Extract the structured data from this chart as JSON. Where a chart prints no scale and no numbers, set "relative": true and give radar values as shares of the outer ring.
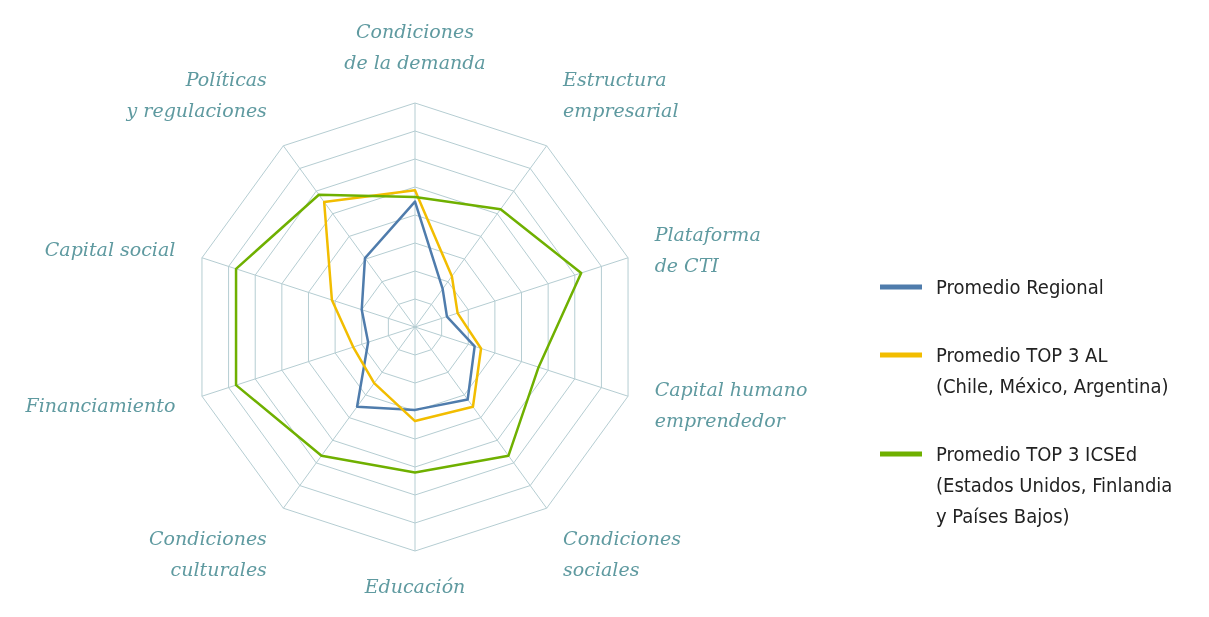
{
  "chart_data": {
    "type": "radar",
    "relative": true,
    "legend": "right",
    "categories": [
      "Condiciones\nde la demanda",
      "Estructura\nempresarial",
      "Plataforma\nde CTI",
      "Capital humano\nemprendedor",
      "Condiciones\nsociales",
      "Educación",
      "Condiciones\nculturales",
      "Financiamiento",
      "Capital social",
      "Políticas\ny regulaciones"
    ],
    "series": [
      {
        "name": "Promedio Regional",
        "color": "#4f7cac",
        "values": [
          0.56,
          0.21,
          0.15,
          0.28,
          0.4,
          0.37,
          0.44,
          0.22,
          0.25,
          0.38
        ]
      },
      {
        "name": "Promedio TOP 3 AL\n(Chile, México, Argentina)",
        "color": "#f2bd00",
        "values": [
          0.61,
          0.28,
          0.2,
          0.31,
          0.44,
          0.42,
          0.31,
          0.29,
          0.39,
          0.69
        ]
      },
      {
        "name": "Promedio TOP 3 ICSEd\n(Estados Unidos, Finlandia\ny Países Bajos)",
        "color": "#6fb000",
        "values": [
          0.58,
          0.65,
          0.78,
          0.58,
          0.71,
          0.65,
          0.71,
          0.84,
          0.84,
          0.73
        ]
      }
    ]
  }
}
